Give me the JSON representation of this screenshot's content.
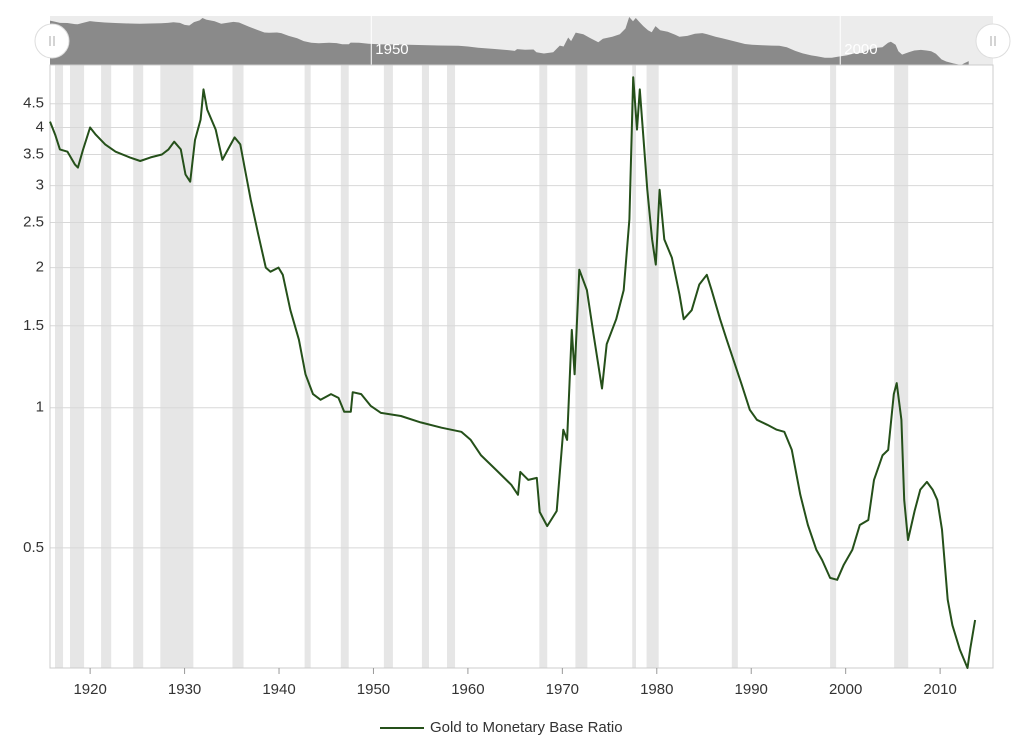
{
  "chart_data": {
    "type": "line",
    "x": [
      1915.75,
      1916.3,
      1916.8,
      1917.6,
      1918.4,
      1918.7,
      1919.25,
      1920,
      1920.6,
      1921.6,
      1922.7,
      1924.2,
      1925.3,
      1926.4,
      1927.6,
      1928.3,
      1928.9,
      1929.6,
      1930.1,
      1930.6,
      1931.1,
      1931.7,
      1932.0,
      1932.4,
      1933.3,
      1934.0,
      1934.6,
      1935.3,
      1935.9,
      1936.4,
      1937.0,
      1937.8,
      1938.6,
      1939.1,
      1939.95,
      1940.4,
      1941.2,
      1942.1,
      1942.8,
      1943.6,
      1944.4,
      1945.5,
      1946.3,
      1946.9,
      1947.6,
      1947.8,
      1948.7,
      1949.7,
      1950.8,
      1952.9,
      1955.0,
      1957.2,
      1959.3,
      1960.3,
      1961.4,
      1963.0,
      1964.6,
      1965.3,
      1965.55,
      1966.4,
      1967.3,
      1967.6,
      1968.4,
      1969.4,
      1970.1,
      1970.5,
      1971.0,
      1971.3,
      1971.8,
      1972.6,
      1973.3,
      1974.2,
      1974.7,
      1975.7,
      1976.5,
      1977.1,
      1977.5,
      1977.9,
      1978.2,
      1978.6,
      1979.0,
      1979.5,
      1979.9,
      1980.3,
      1980.8,
      1981.6,
      1982.4,
      1982.85,
      1983.7,
      1984.5,
      1985.3,
      1985.8,
      1986.7,
      1987.4,
      1988.1,
      1989.0,
      1989.85,
      1990.6,
      1991.7,
      1992.7,
      1993.5,
      1994.3,
      1995.2,
      1996.0,
      1996.9,
      1997.5,
      1998.35,
      1999.1,
      1999.8,
      2000.7,
      2001.5,
      2002.4,
      2003.0,
      2003.9,
      2004.5,
      2005.1,
      2005.4,
      2005.9,
      2006.2,
      2006.6,
      2007.3,
      2007.9,
      2008.6,
      2009.2,
      2009.7,
      2010.2,
      2010.8,
      2011.3,
      2012.1,
      2012.9,
      2013.2,
      2013.7
    ],
    "series": [
      {
        "name": "Gold to Monetary Base Ratio",
        "color": "#25501a",
        "values": [
          4.12,
          3.86,
          3.59,
          3.55,
          3.33,
          3.28,
          3.59,
          4.0,
          3.86,
          3.68,
          3.55,
          3.45,
          3.39,
          3.45,
          3.5,
          3.59,
          3.73,
          3.59,
          3.17,
          3.06,
          3.76,
          4.16,
          4.83,
          4.37,
          3.96,
          3.41,
          3.59,
          3.81,
          3.68,
          3.25,
          2.8,
          2.36,
          2.0,
          1.96,
          2.0,
          1.93,
          1.62,
          1.4,
          1.18,
          1.07,
          1.04,
          1.07,
          1.05,
          0.98,
          0.98,
          1.08,
          1.07,
          1.01,
          0.975,
          0.96,
          0.93,
          0.906,
          0.888,
          0.853,
          0.79,
          0.735,
          0.683,
          0.65,
          0.728,
          0.7,
          0.707,
          0.597,
          0.557,
          0.6,
          0.897,
          0.853,
          1.47,
          1.18,
          1.98,
          1.79,
          1.44,
          1.1,
          1.37,
          1.55,
          1.79,
          2.54,
          5.13,
          3.96,
          4.83,
          3.76,
          2.94,
          2.3,
          2.03,
          2.94,
          2.3,
          2.1,
          1.75,
          1.55,
          1.62,
          1.84,
          1.93,
          1.79,
          1.55,
          1.4,
          1.27,
          1.12,
          0.99,
          0.942,
          0.919,
          0.897,
          0.888,
          0.812,
          0.65,
          0.56,
          0.495,
          0.471,
          0.431,
          0.427,
          0.46,
          0.495,
          0.56,
          0.574,
          0.7,
          0.79,
          0.812,
          1.07,
          1.13,
          0.942,
          0.634,
          0.52,
          0.6,
          0.667,
          0.693,
          0.667,
          0.634,
          0.547,
          0.387,
          0.341,
          0.302,
          0.276,
          0.304,
          0.35
        ]
      }
    ],
    "xlim": [
      1915.75,
      2015.6
    ],
    "xticks": [
      1920,
      1930,
      1940,
      1950,
      1960,
      1970,
      1980,
      1990,
      2000,
      2010
    ],
    "ylim": [
      0.276,
      5.45
    ],
    "yticks": [
      0.5,
      1,
      1.5,
      2,
      2.5,
      3,
      3.5,
      4,
      4.5
    ],
    "log_y": true,
    "grid": true,
    "recession_color": "#e6e6e6",
    "recessions": [
      [
        1916.28,
        1917.13
      ],
      [
        1917.87,
        1919.36
      ],
      [
        1921.16,
        1922.23
      ],
      [
        1924.56,
        1925.62
      ],
      [
        1927.43,
        1930.93
      ],
      [
        1935.07,
        1936.24
      ],
      [
        1942.71,
        1943.35
      ],
      [
        1946.54,
        1947.38
      ],
      [
        1951.1,
        1952.06
      ],
      [
        1955.13,
        1955.88
      ],
      [
        1957.79,
        1958.64
      ],
      [
        1967.56,
        1968.4
      ],
      [
        1971.38,
        1972.65
      ],
      [
        1977.4,
        1977.8
      ],
      [
        1978.92,
        1980.2
      ],
      [
        1987.94,
        1988.58
      ],
      [
        1998.35,
        1998.99
      ],
      [
        2005.13,
        2006.62
      ]
    ],
    "navigator": {
      "xlim": [
        1913.4,
        2016.5
      ],
      "xticks": [
        1950,
        2000
      ],
      "color": "#8a8a8a"
    }
  }
}
